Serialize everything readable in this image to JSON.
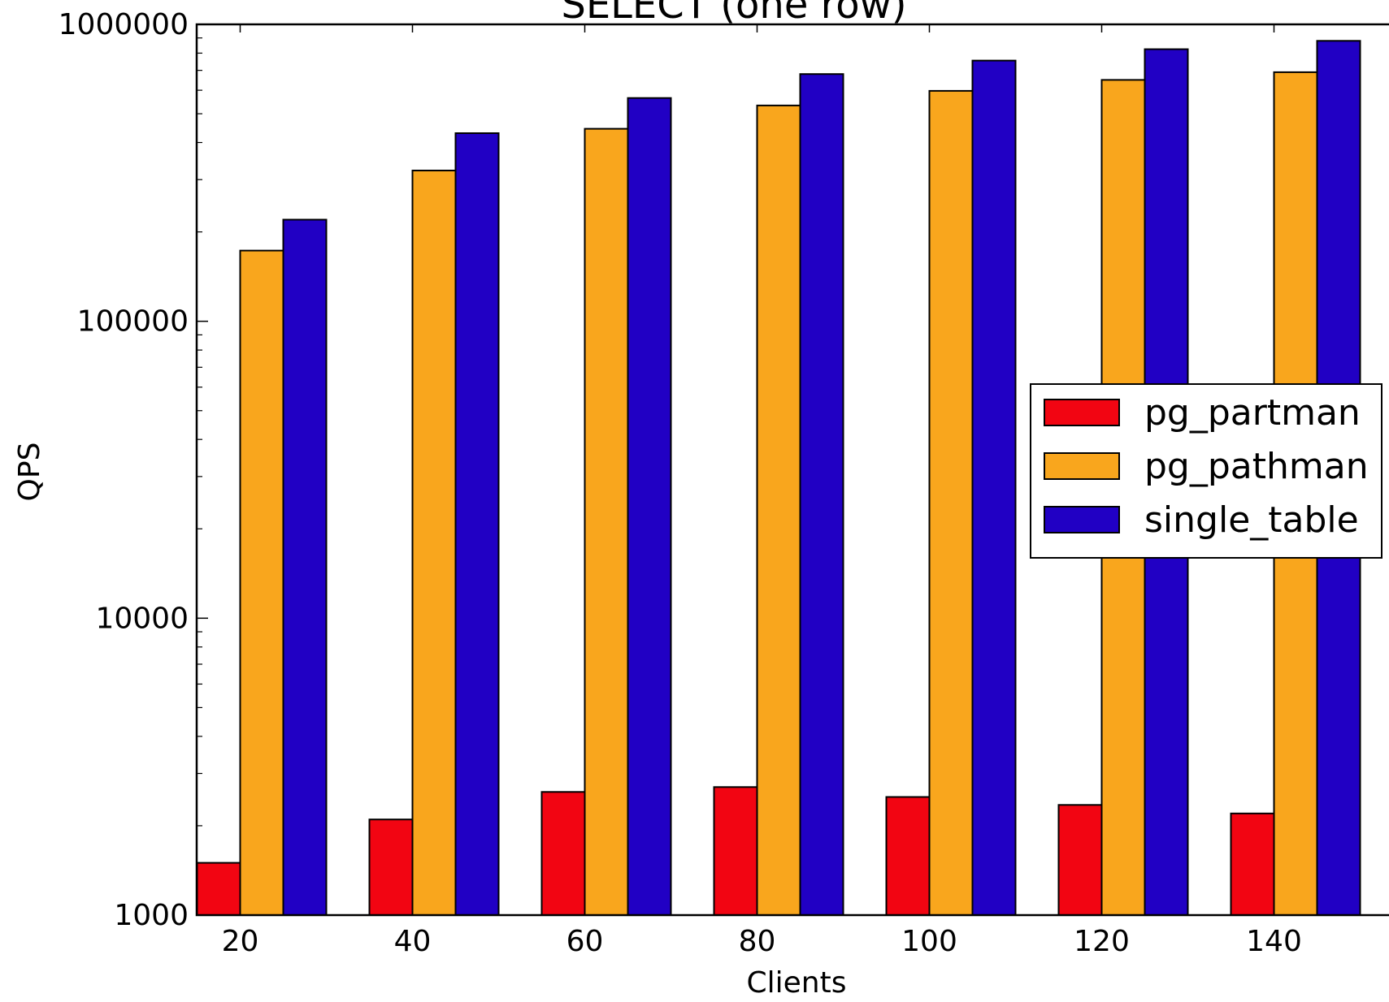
{
  "chart_data": {
    "type": "bar",
    "title": "SELECT (one row)",
    "xlabel": "Clients",
    "ylabel": "QPS",
    "yscale": "log",
    "ylim": [
      1000,
      1000000
    ],
    "yticks": [
      "1000",
      "10000",
      "100000",
      "1000000"
    ],
    "categories": [
      "20",
      "40",
      "60",
      "80",
      "100",
      "120",
      "140"
    ],
    "series": [
      {
        "name": "pg_partman",
        "color": "#f20512",
        "values": [
          1500,
          2100,
          2600,
          2700,
          2500,
          2350,
          2200
        ]
      },
      {
        "name": "pg_pathman",
        "color": "#f9a61d",
        "values": [
          173000,
          322000,
          445000,
          533000,
          597000,
          650000,
          690000
        ]
      },
      {
        "name": "single_table",
        "color": "#2100c4",
        "values": [
          220000,
          430000,
          565000,
          680000,
          755000,
          825000,
          880000
        ]
      }
    ],
    "legend_position": "right",
    "grid": false
  }
}
